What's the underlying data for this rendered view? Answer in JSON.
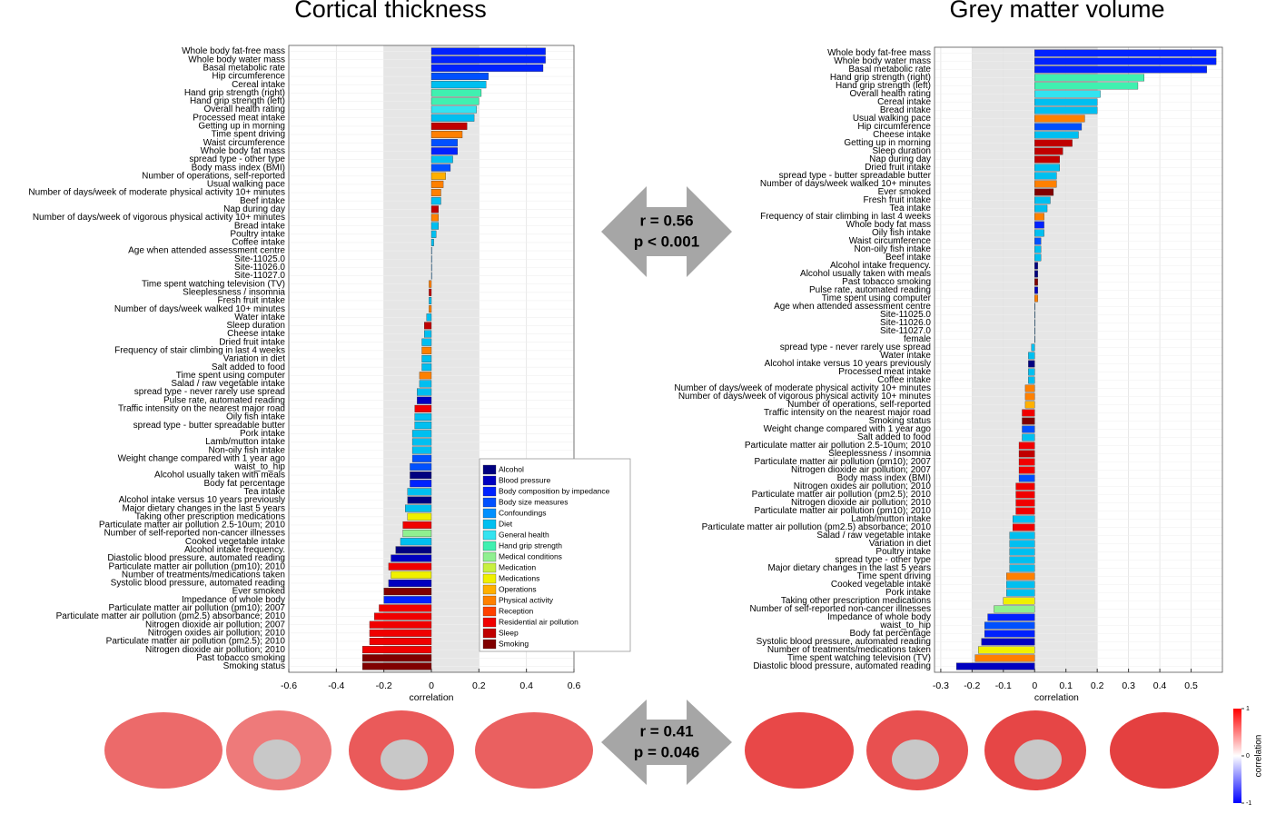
{
  "chart_data": [
    {
      "type": "bar",
      "orientation": "horizontal",
      "title": "Cortical thickness",
      "xlabel": "correlation",
      "xlim": [
        -0.6,
        0.6
      ],
      "xticks": [
        -0.6,
        -0.4,
        -0.2,
        0,
        0.2,
        0.4,
        0.6
      ],
      "grid": true,
      "shaded_range": [
        -0.2,
        0.2
      ],
      "categories": [
        "Whole body fat-free mass",
        "Whole body water mass",
        "Basal metabolic rate",
        "Hip circumference",
        "Cereal intake",
        "Hand grip strength (right)",
        "Hand grip strength (left)",
        "Overall health rating",
        "Processed meat intake",
        "Getting up in morning",
        "Time spent driving",
        "Waist circumference",
        "Whole body fat mass",
        "spread type - other type",
        "Body mass index (BMI)",
        "Number of operations, self-reported",
        "Usual walking pace",
        "Number of days/week of moderate physical activity 10+ minutes",
        "Beef intake",
        "Nap during day",
        "Number of days/week of vigorous physical activity 10+ minutes",
        "Bread intake",
        "Poultry intake",
        "Coffee intake",
        "Age when attended assessment centre",
        "Site-11025.0",
        "Site-11026.0",
        "Site-11027.0",
        "Time spent watching television (TV)",
        "Sleeplessness / insomnia",
        "Fresh fruit intake",
        "Number of days/week walked 10+ minutes",
        "Water intake",
        "Sleep duration",
        "Cheese intake",
        "Dried fruit intake",
        "Frequency of stair climbing in last 4 weeks",
        "Variation in diet",
        "Salt added to food",
        "Time spent using computer",
        "Salad / raw vegetable intake",
        "spread type - never rarely use spread",
        "Pulse rate, automated reading",
        "Traffic intensity on the nearest major road",
        "Oily fish intake",
        "spread type - butter spreadable butter",
        "Pork intake",
        "Lamb/mutton intake",
        "Non-oily fish intake",
        "Weight change compared with 1 year ago",
        "waist_to_hip",
        "Alcohol usually taken with meals",
        "Body fat percentage",
        "Tea intake",
        "Alcohol intake versus 10 years previously",
        "Major dietary changes in the last 5 years",
        "Taking other prescription medications",
        "Particulate matter air pollution 2.5-10um; 2010",
        "Number of self-reported non-cancer illnesses",
        "Cooked vegetable intake",
        "Alcohol intake frequency.",
        "Diastolic blood pressure, automated reading",
        "Particulate matter air pollution (pm10); 2010",
        "Number of treatments/medications taken",
        "Systolic blood pressure, automated reading",
        "Ever smoked",
        "Impedance of whole body",
        "Particulate matter air pollution (pm10); 2007",
        "Particulate matter air pollution (pm2.5) absorbance; 2010",
        "Nitrogen dioxide air pollution; 2007",
        "Nitrogen oxides air pollution; 2010",
        "Particulate matter air pollution (pm2.5); 2010",
        "Nitrogen dioxide air pollution; 2010",
        "Past tobacco smoking",
        "Smoking status"
      ],
      "values": [
        0.48,
        0.48,
        0.47,
        0.24,
        0.23,
        0.21,
        0.2,
        0.19,
        0.18,
        0.15,
        0.13,
        0.11,
        0.11,
        0.09,
        0.08,
        0.06,
        0.05,
        0.04,
        0.04,
        0.03,
        0.03,
        0.03,
        0.02,
        0.01,
        0,
        0,
        0,
        0,
        -0.01,
        -0.01,
        -0.01,
        -0.01,
        -0.02,
        -0.03,
        -0.03,
        -0.04,
        -0.04,
        -0.04,
        -0.04,
        -0.05,
        -0.05,
        -0.06,
        -0.06,
        -0.07,
        -0.07,
        -0.07,
        -0.08,
        -0.08,
        -0.08,
        -0.08,
        -0.09,
        -0.09,
        -0.09,
        -0.1,
        -0.1,
        -0.11,
        -0.1,
        -0.12,
        -0.12,
        -0.13,
        -0.15,
        -0.17,
        -0.18,
        -0.17,
        -0.18,
        -0.2,
        -0.2,
        -0.22,
        -0.24,
        -0.26,
        -0.26,
        -0.26,
        -0.29,
        -0.29,
        -0.29
      ],
      "bar_group": [
        2,
        2,
        2,
        3,
        5,
        7,
        7,
        6,
        5,
        15,
        12,
        3,
        2,
        5,
        3,
        11,
        12,
        12,
        5,
        15,
        12,
        5,
        5,
        5,
        4,
        4,
        4,
        4,
        12,
        15,
        5,
        12,
        5,
        15,
        5,
        5,
        12,
        5,
        5,
        12,
        5,
        5,
        1,
        14,
        5,
        5,
        5,
        5,
        5,
        3,
        3,
        0,
        2,
        5,
        0,
        5,
        10,
        14,
        8,
        5,
        0,
        1,
        14,
        10,
        1,
        16,
        2,
        14,
        14,
        14,
        14,
        14,
        14,
        16,
        16
      ],
      "legend": [
        {
          "name": "Alcohol",
          "color": "#000080"
        },
        {
          "name": "Blood pressure",
          "color": "#0000c0"
        },
        {
          "name": "Body composition by impedance",
          "color": "#0022ff"
        },
        {
          "name": "Body size measures",
          "color": "#0050ff"
        },
        {
          "name": "Confoundings",
          "color": "#0090ff"
        },
        {
          "name": "Diet",
          "color": "#00bff0"
        },
        {
          "name": "General health",
          "color": "#33e3f0"
        },
        {
          "name": "Hand grip strength",
          "color": "#40f0b0"
        },
        {
          "name": "Medical conditions",
          "color": "#90f090"
        },
        {
          "name": "Medication",
          "color": "#c8f040"
        },
        {
          "name": "Medications",
          "color": "#f0f000"
        },
        {
          "name": "Operations",
          "color": "#ffb000"
        },
        {
          "name": "Physical activity",
          "color": "#ff8000"
        },
        {
          "name": "Reception",
          "color": "#ff4000"
        },
        {
          "name": "Residential air pollution",
          "color": "#f00000"
        },
        {
          "name": "Sleep",
          "color": "#c00000"
        },
        {
          "name": "Smoking",
          "color": "#800000"
        }
      ],
      "legend_position": "lower right"
    },
    {
      "type": "bar",
      "orientation": "horizontal",
      "title": "Grey matter volume",
      "xlabel": "correlation",
      "xlim": [
        -0.32,
        0.6
      ],
      "xticks": [
        -0.3,
        -0.2,
        -0.1,
        0,
        0.1,
        0.2,
        0.3,
        0.4,
        0.5
      ],
      "grid": true,
      "shaded_range": [
        -0.2,
        0.2
      ],
      "categories": [
        "Whole body fat-free mass",
        "Whole body water mass",
        "Basal metabolic rate",
        "Hand grip strength (right)",
        "Hand grip strength (left)",
        "Overall health rating",
        "Cereal intake",
        "Bread intake",
        "Usual walking pace",
        "Hip circumference",
        "Cheese intake",
        "Getting up in morning",
        "Sleep duration",
        "Nap during day",
        "Dried fruit intake",
        "spread type - butter spreadable butter",
        "Number of days/week walked 10+ minutes",
        "Ever smoked",
        "Fresh fruit intake",
        "Tea intake",
        "Frequency of stair climbing in last 4 weeks",
        "Whole body fat mass",
        "Oily fish intake",
        "Waist circumference",
        "Non-oily fish intake",
        "Beef intake",
        "Alcohol intake frequency.",
        "Alcohol usually taken with meals",
        "Past tobacco smoking",
        "Pulse rate, automated reading",
        "Time spent using computer",
        "Age when attended assessment centre",
        "Site-11025.0",
        "Site-11026.0",
        "Site-11027.0",
        "female",
        "spread type - never rarely use spread",
        "Water intake",
        "Alcohol intake versus 10 years previously",
        "Processed meat intake",
        "Coffee intake",
        "Number of days/week of moderate physical activity 10+ minutes",
        "Number of days/week of vigorous physical activity 10+ minutes",
        "Number of operations, self-reported",
        "Traffic intensity on the nearest major road",
        "Smoking status",
        "Weight change compared with 1 year ago",
        "Salt added to food",
        "Particulate matter air pollution 2.5-10um; 2010",
        "Sleeplessness / insomnia",
        "Particulate matter air pollution (pm10); 2007",
        "Nitrogen dioxide air pollution; 2007",
        "Body mass index (BMI)",
        "Nitrogen oxides air pollution; 2010",
        "Particulate matter air pollution (pm2.5); 2010",
        "Nitrogen dioxide air pollution; 2010",
        "Particulate matter air pollution (pm10); 2010",
        "Lamb/mutton intake",
        "Particulate matter air pollution (pm2.5) absorbance; 2010",
        "Salad / raw vegetable intake",
        "Variation in diet",
        "Poultry intake",
        "spread type - other type",
        "Major dietary changes in the last 5 years",
        "Time spent driving",
        "Cooked vegetable intake",
        "Pork intake",
        "Taking other prescription medications",
        "Number of self-reported non-cancer illnesses",
        "Impedance of whole body",
        "waist_to_hip",
        "Body fat percentage",
        "Systolic blood pressure, automated reading",
        "Number of treatments/medications taken",
        "Time spent watching television (TV)",
        "Diastolic blood pressure, automated reading"
      ],
      "values": [
        0.58,
        0.58,
        0.55,
        0.35,
        0.33,
        0.21,
        0.2,
        0.2,
        0.16,
        0.15,
        0.14,
        0.12,
        0.09,
        0.08,
        0.08,
        0.07,
        0.07,
        0.06,
        0.05,
        0.04,
        0.03,
        0.03,
        0.03,
        0.02,
        0.02,
        0.02,
        0.01,
        0.01,
        0.01,
        0.01,
        0.01,
        0,
        0,
        0,
        0,
        0,
        -0.01,
        -0.02,
        -0.02,
        -0.02,
        -0.02,
        -0.03,
        -0.03,
        -0.03,
        -0.04,
        -0.04,
        -0.04,
        -0.04,
        -0.05,
        -0.05,
        -0.05,
        -0.05,
        -0.05,
        -0.06,
        -0.06,
        -0.06,
        -0.06,
        -0.07,
        -0.07,
        -0.08,
        -0.08,
        -0.08,
        -0.08,
        -0.08,
        -0.09,
        -0.09,
        -0.09,
        -0.1,
        -0.13,
        -0.15,
        -0.16,
        -0.16,
        -0.17,
        -0.18,
        -0.19,
        -0.25
      ],
      "bar_group": [
        2,
        2,
        2,
        7,
        7,
        6,
        5,
        5,
        12,
        3,
        5,
        15,
        15,
        15,
        5,
        5,
        12,
        16,
        5,
        5,
        12,
        2,
        5,
        3,
        5,
        5,
        0,
        0,
        16,
        1,
        12,
        4,
        4,
        4,
        4,
        4,
        5,
        5,
        0,
        5,
        5,
        12,
        12,
        11,
        14,
        16,
        3,
        5,
        14,
        15,
        14,
        14,
        3,
        14,
        14,
        14,
        14,
        5,
        14,
        5,
        5,
        5,
        5,
        5,
        12,
        5,
        5,
        10,
        8,
        2,
        3,
        2,
        1,
        10,
        12,
        1
      ]
    }
  ],
  "comparisons": [
    {
      "r": "r = 0.56",
      "p": "p < 0.001"
    },
    {
      "r": "r = 0.41",
      "p": "p = 0.046"
    }
  ],
  "colorbar": {
    "label": "correlation",
    "ticks": [
      1,
      0,
      -1
    ]
  }
}
